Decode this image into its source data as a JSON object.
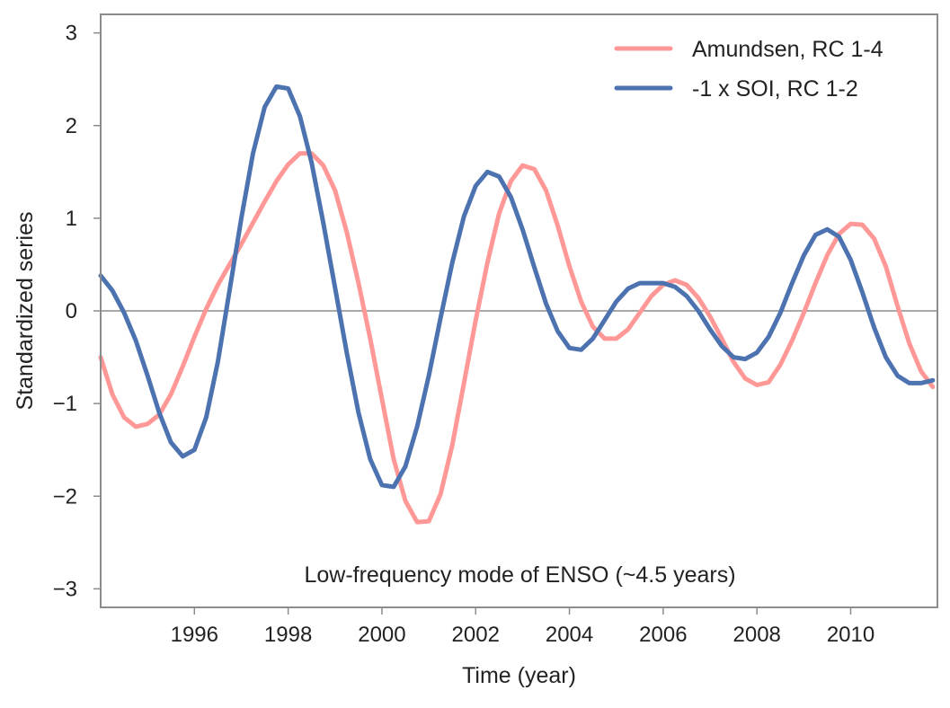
{
  "chart_data": {
    "type": "line",
    "title": "",
    "xlabel": "Time (year)",
    "ylabel": "Standardized series",
    "xlim": [
      1994.0,
      2011.85
    ],
    "ylim": [
      -3.2,
      3.2
    ],
    "xticks": [
      1996,
      1998,
      2000,
      2002,
      2004,
      2006,
      2008,
      2010
    ],
    "xtick_labels": [
      "1996",
      "1998",
      "2000",
      "2002",
      "2004",
      "2006",
      "2008",
      "2010"
    ],
    "yticks": [
      3,
      2,
      1,
      0,
      -1,
      -2,
      -3
    ],
    "ytick_labels": [
      "3",
      "2",
      "1",
      "0",
      "−1",
      "−2",
      "−3"
    ],
    "grid": false,
    "zero_line": true,
    "legend_position": "top-right",
    "annotation": "Low-frequency mode of ENSO (~4.5 years)",
    "series": [
      {
        "name": "Amundsen, RC 1-4",
        "color": "#ff9896",
        "points": [
          [
            1994.0,
            -0.5
          ],
          [
            1994.25,
            -0.9
          ],
          [
            1994.5,
            -1.15
          ],
          [
            1994.75,
            -1.25
          ],
          [
            1995.0,
            -1.22
          ],
          [
            1995.25,
            -1.12
          ],
          [
            1995.5,
            -0.9
          ],
          [
            1995.75,
            -0.6
          ],
          [
            1996.0,
            -0.28
          ],
          [
            1996.25,
            0.02
          ],
          [
            1996.5,
            0.28
          ],
          [
            1996.75,
            0.5
          ],
          [
            1997.0,
            0.72
          ],
          [
            1997.25,
            0.95
          ],
          [
            1997.5,
            1.18
          ],
          [
            1997.75,
            1.4
          ],
          [
            1998.0,
            1.58
          ],
          [
            1998.25,
            1.7
          ],
          [
            1998.5,
            1.7
          ],
          [
            1998.75,
            1.57
          ],
          [
            1999.0,
            1.3
          ],
          [
            1999.25,
            0.85
          ],
          [
            1999.5,
            0.3
          ],
          [
            1999.75,
            -0.3
          ],
          [
            2000.0,
            -0.95
          ],
          [
            2000.25,
            -1.6
          ],
          [
            2000.5,
            -2.05
          ],
          [
            2000.75,
            -2.28
          ],
          [
            2001.0,
            -2.27
          ],
          [
            2001.25,
            -1.98
          ],
          [
            2001.5,
            -1.45
          ],
          [
            2001.75,
            -0.78
          ],
          [
            2002.0,
            -0.1
          ],
          [
            2002.25,
            0.52
          ],
          [
            2002.5,
            1.05
          ],
          [
            2002.75,
            1.4
          ],
          [
            2003.0,
            1.57
          ],
          [
            2003.25,
            1.53
          ],
          [
            2003.5,
            1.3
          ],
          [
            2003.75,
            0.92
          ],
          [
            2004.0,
            0.48
          ],
          [
            2004.25,
            0.1
          ],
          [
            2004.5,
            -0.17
          ],
          [
            2004.75,
            -0.3
          ],
          [
            2005.0,
            -0.3
          ],
          [
            2005.25,
            -0.2
          ],
          [
            2005.5,
            -0.02
          ],
          [
            2005.75,
            0.16
          ],
          [
            2006.0,
            0.28
          ],
          [
            2006.25,
            0.33
          ],
          [
            2006.5,
            0.28
          ],
          [
            2006.75,
            0.14
          ],
          [
            2007.0,
            -0.06
          ],
          [
            2007.25,
            -0.3
          ],
          [
            2007.5,
            -0.55
          ],
          [
            2007.75,
            -0.73
          ],
          [
            2008.0,
            -0.8
          ],
          [
            2008.25,
            -0.77
          ],
          [
            2008.5,
            -0.58
          ],
          [
            2008.75,
            -0.32
          ],
          [
            2009.0,
            -0.02
          ],
          [
            2009.25,
            0.3
          ],
          [
            2009.5,
            0.6
          ],
          [
            2009.75,
            0.83
          ],
          [
            2010.0,
            0.94
          ],
          [
            2010.25,
            0.93
          ],
          [
            2010.5,
            0.78
          ],
          [
            2010.75,
            0.48
          ],
          [
            2011.0,
            0.05
          ],
          [
            2011.25,
            -0.35
          ],
          [
            2011.5,
            -0.65
          ],
          [
            2011.75,
            -0.82
          ]
        ]
      },
      {
        "name": "-1 x SOI, RC 1-2",
        "color": "#4c72b0",
        "points": [
          [
            1994.0,
            0.38
          ],
          [
            1994.25,
            0.22
          ],
          [
            1994.5,
            -0.02
          ],
          [
            1994.75,
            -0.32
          ],
          [
            1995.0,
            -0.7
          ],
          [
            1995.25,
            -1.1
          ],
          [
            1995.5,
            -1.42
          ],
          [
            1995.75,
            -1.57
          ],
          [
            1996.0,
            -1.5
          ],
          [
            1996.25,
            -1.15
          ],
          [
            1996.5,
            -0.55
          ],
          [
            1996.75,
            0.22
          ],
          [
            1997.0,
            1.0
          ],
          [
            1997.25,
            1.7
          ],
          [
            1997.5,
            2.2
          ],
          [
            1997.75,
            2.42
          ],
          [
            1998.0,
            2.4
          ],
          [
            1998.25,
            2.1
          ],
          [
            1998.5,
            1.6
          ],
          [
            1998.75,
            0.95
          ],
          [
            1999.0,
            0.25
          ],
          [
            1999.25,
            -0.45
          ],
          [
            1999.5,
            -1.1
          ],
          [
            1999.75,
            -1.6
          ],
          [
            2000.0,
            -1.88
          ],
          [
            2000.25,
            -1.9
          ],
          [
            2000.5,
            -1.68
          ],
          [
            2000.75,
            -1.25
          ],
          [
            2001.0,
            -0.7
          ],
          [
            2001.25,
            -0.08
          ],
          [
            2001.5,
            0.52
          ],
          [
            2001.75,
            1.02
          ],
          [
            2002.0,
            1.35
          ],
          [
            2002.25,
            1.5
          ],
          [
            2002.5,
            1.45
          ],
          [
            2002.75,
            1.23
          ],
          [
            2003.0,
            0.88
          ],
          [
            2003.25,
            0.47
          ],
          [
            2003.5,
            0.08
          ],
          [
            2003.75,
            -0.22
          ],
          [
            2004.0,
            -0.4
          ],
          [
            2004.25,
            -0.42
          ],
          [
            2004.5,
            -0.3
          ],
          [
            2004.75,
            -0.1
          ],
          [
            2005.0,
            0.1
          ],
          [
            2005.25,
            0.24
          ],
          [
            2005.5,
            0.3
          ],
          [
            2005.75,
            0.3
          ],
          [
            2006.0,
            0.3
          ],
          [
            2006.25,
            0.26
          ],
          [
            2006.5,
            0.16
          ],
          [
            2006.75,
            0.0
          ],
          [
            2007.0,
            -0.2
          ],
          [
            2007.25,
            -0.38
          ],
          [
            2007.5,
            -0.5
          ],
          [
            2007.75,
            -0.52
          ],
          [
            2008.0,
            -0.45
          ],
          [
            2008.25,
            -0.28
          ],
          [
            2008.5,
            -0.02
          ],
          [
            2008.75,
            0.3
          ],
          [
            2009.0,
            0.6
          ],
          [
            2009.25,
            0.82
          ],
          [
            2009.5,
            0.88
          ],
          [
            2009.75,
            0.8
          ],
          [
            2010.0,
            0.55
          ],
          [
            2010.25,
            0.2
          ],
          [
            2010.5,
            -0.18
          ],
          [
            2010.75,
            -0.5
          ],
          [
            2011.0,
            -0.7
          ],
          [
            2011.25,
            -0.78
          ],
          [
            2011.5,
            -0.78
          ],
          [
            2011.75,
            -0.75
          ]
        ]
      }
    ]
  }
}
